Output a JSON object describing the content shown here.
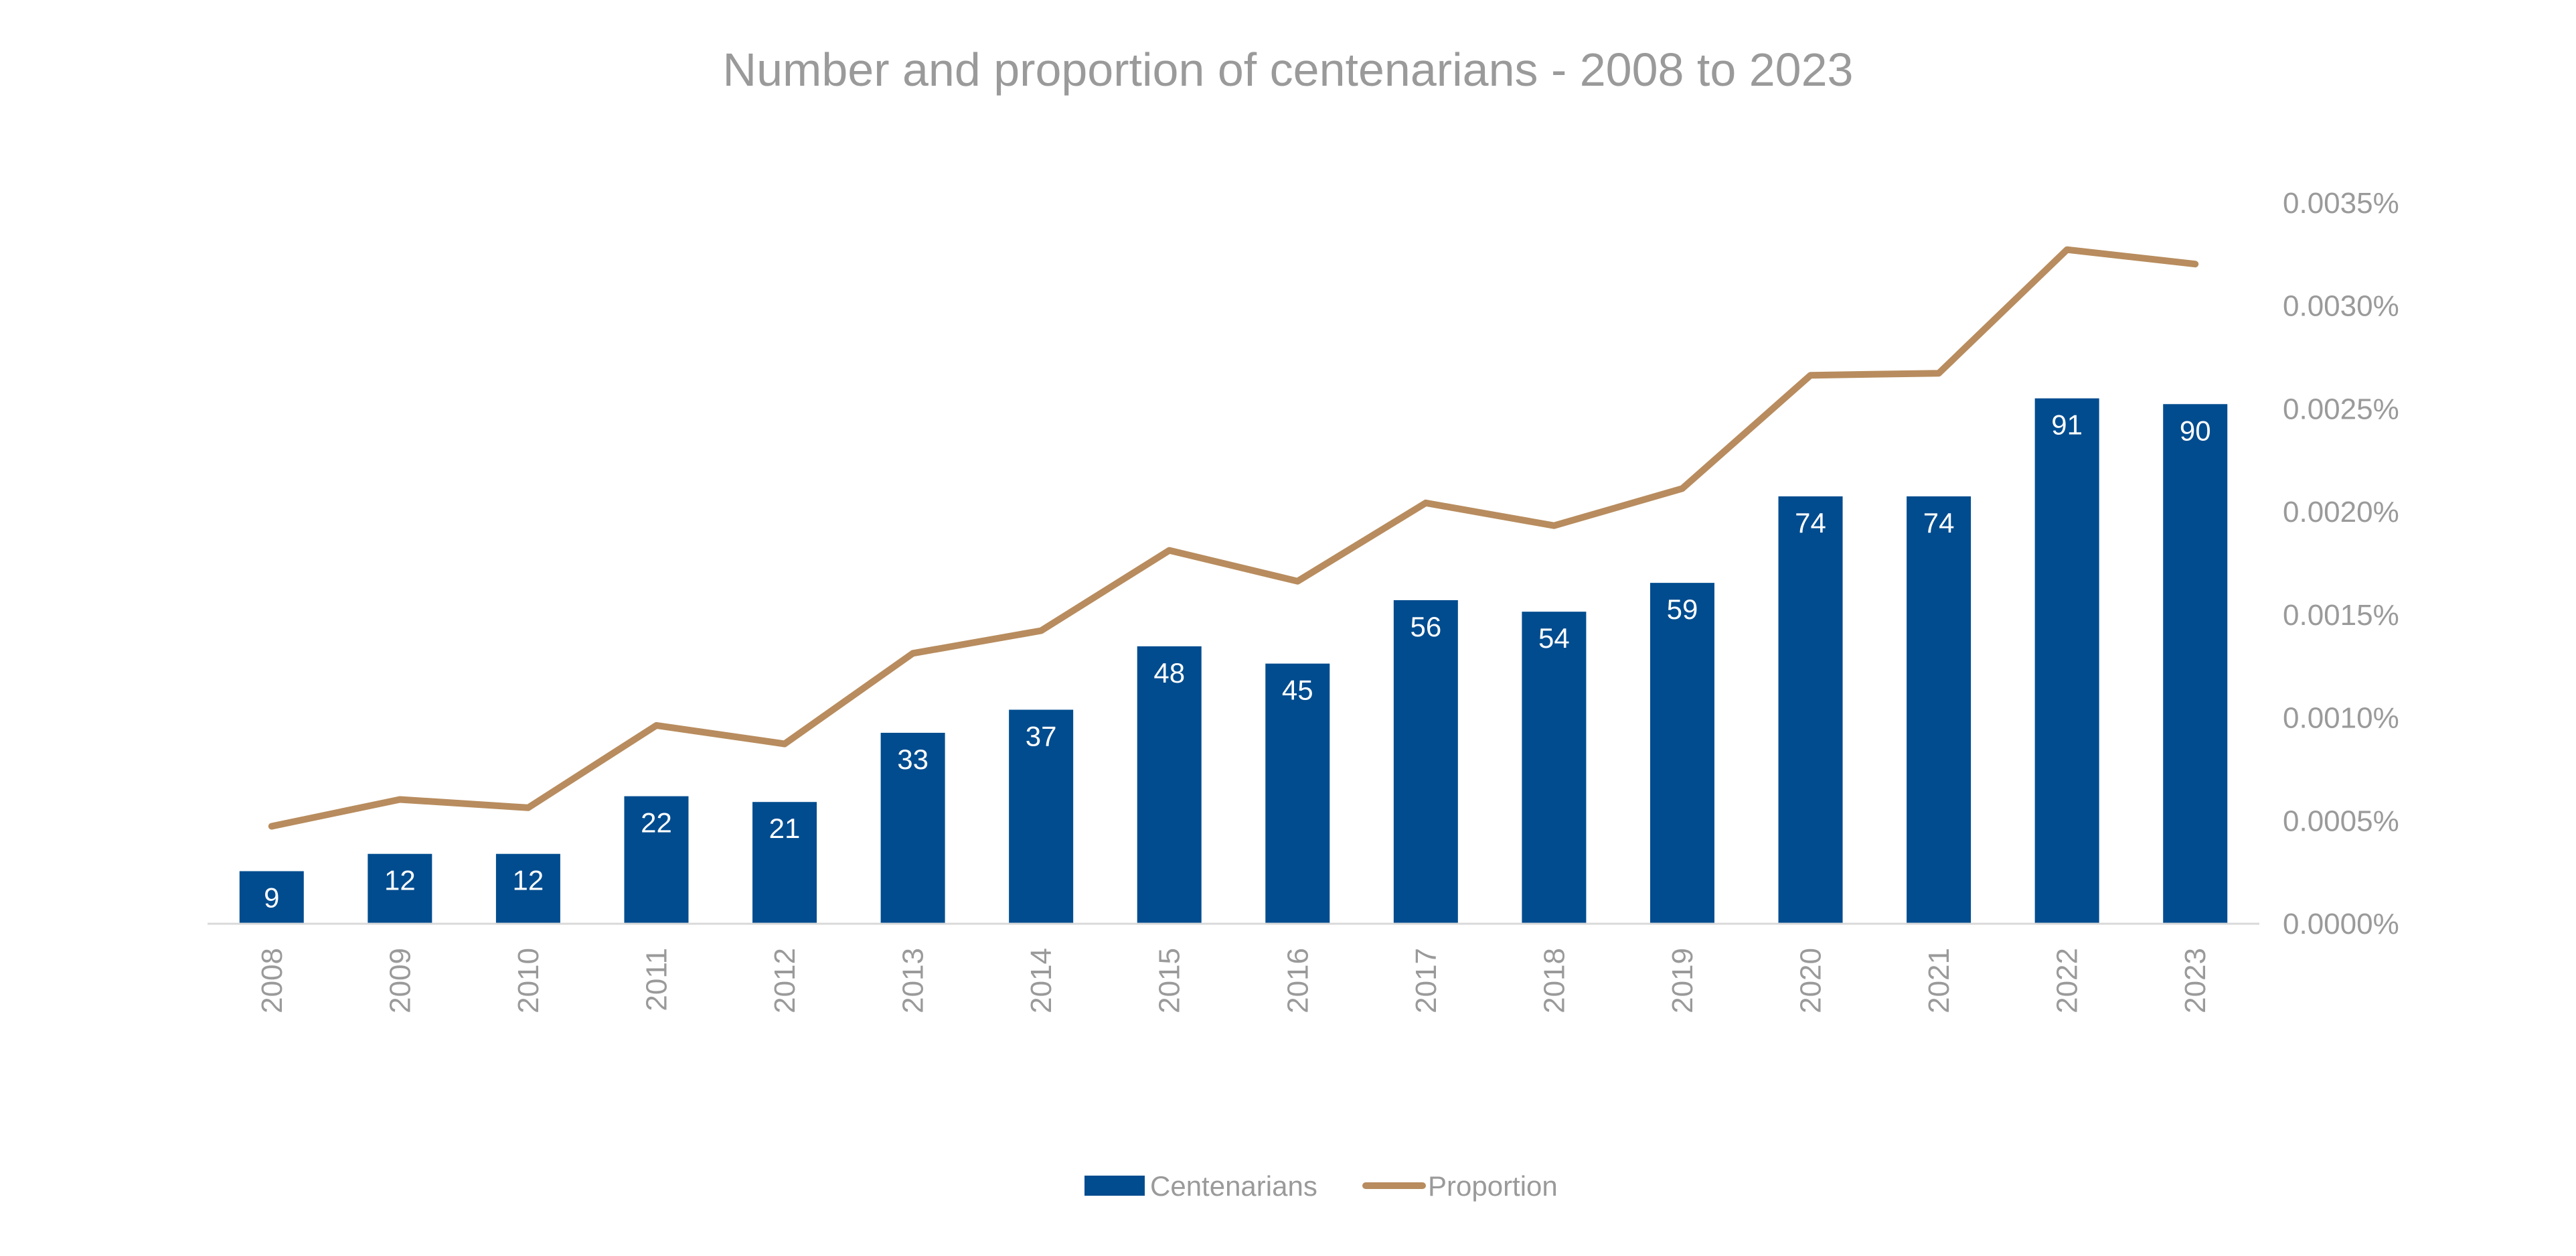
{
  "chart_data": {
    "type": "bar",
    "title": "Number and proportion of centenarians - 2008 to 2023",
    "categories": [
      "2008",
      "2009",
      "2010",
      "2011",
      "2012",
      "2013",
      "2014",
      "2015",
      "2016",
      "2017",
      "2018",
      "2019",
      "2020",
      "2021",
      "2022",
      "2023"
    ],
    "series": [
      {
        "name": "Centenarians",
        "type": "bar",
        "axis": "primary",
        "color": "#004C8F",
        "values": [
          9,
          12,
          12,
          22,
          21,
          33,
          37,
          48,
          45,
          56,
          54,
          59,
          74,
          74,
          91,
          90
        ]
      },
      {
        "name": "Proportion",
        "type": "line",
        "axis": "secondary",
        "color": "#B88C5E",
        "values": [
          0.00047,
          0.0006,
          0.00056,
          0.00096,
          0.00087,
          0.00131,
          0.00142,
          0.00181,
          0.00166,
          0.00204,
          0.00193,
          0.00211,
          0.00266,
          0.00267,
          0.00327,
          0.0032
        ]
      }
    ],
    "y_primary_lim": [
      0,
      125
    ],
    "y_secondary_lim": [
      0,
      0.0035
    ],
    "y_secondary_ticks": [
      "0.0000%",
      "0.0005%",
      "0.0010%",
      "0.0015%",
      "0.0020%",
      "0.0025%",
      "0.0030%",
      "0.0035%"
    ],
    "x_tick_rotation": "vertical",
    "grid": false,
    "legend_position": "bottom"
  }
}
